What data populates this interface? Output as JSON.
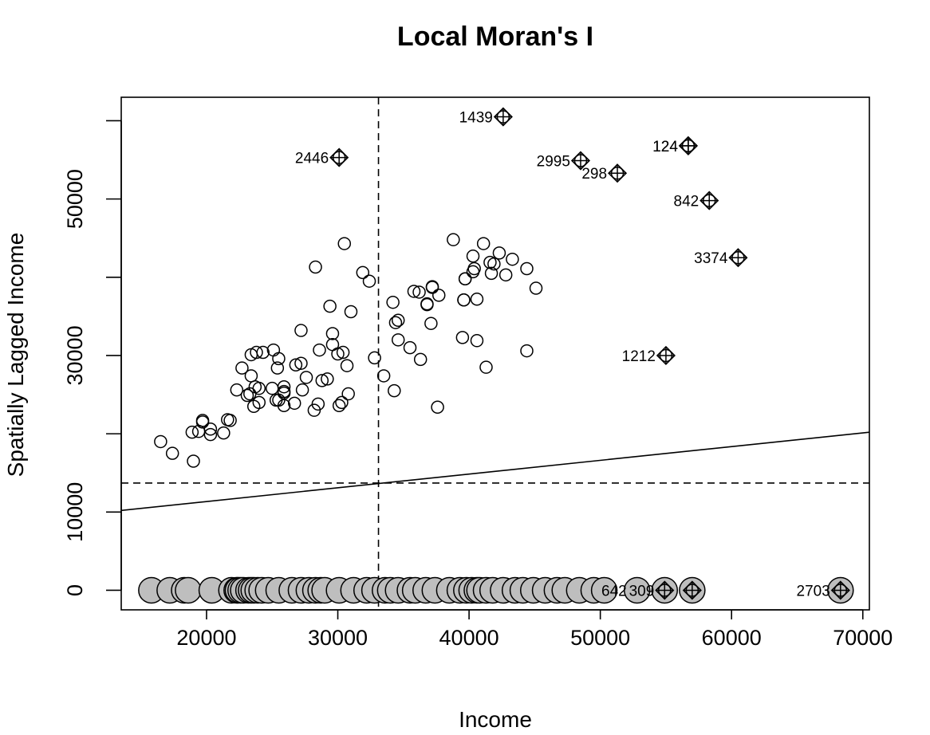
{
  "chart_data": {
    "type": "scatter",
    "title": "Local Moran's I",
    "xlabel": "Income",
    "ylabel": "Spatially Lagged Income",
    "xlim": [
      13500,
      70500
    ],
    "ylim": [
      -2500,
      63000
    ],
    "x_ticks": [
      20000,
      30000,
      40000,
      50000,
      60000,
      70000
    ],
    "y_ticks": [
      0,
      10000,
      30000,
      50000
    ],
    "x_tick_labels": [
      "20000",
      "30000",
      "40000",
      "50000",
      "60000",
      "70000"
    ],
    "y_tick_labels": [
      "0",
      "10000",
      "30000",
      "50000"
    ],
    "y_minor_ticks": [
      20000,
      40000,
      60000
    ],
    "mean_x": 33100,
    "mean_y": 13700,
    "regression_line": {
      "x": [
        13500,
        70500
      ],
      "y": [
        10200,
        20200
      ]
    },
    "grid": false,
    "legend": "none",
    "colors": {
      "marker_stroke": "#000000",
      "zero_fill": "#bebebe",
      "background": "#ffffff"
    },
    "regular_points": [
      [
        16500,
        19000
      ],
      [
        17400,
        17500
      ],
      [
        19000,
        16500
      ],
      [
        18900,
        20200
      ],
      [
        19400,
        20300
      ],
      [
        19700,
        21700
      ],
      [
        19700,
        21500
      ],
      [
        20300,
        19900
      ],
      [
        20300,
        20600
      ],
      [
        21300,
        20100
      ],
      [
        21600,
        21800
      ],
      [
        21800,
        21700
      ],
      [
        22300,
        25600
      ],
      [
        22700,
        28400
      ],
      [
        23100,
        24900
      ],
      [
        23300,
        25100
      ],
      [
        23400,
        27400
      ],
      [
        23400,
        30100
      ],
      [
        23600,
        23500
      ],
      [
        23700,
        26000
      ],
      [
        23800,
        30400
      ],
      [
        24000,
        25800
      ],
      [
        24000,
        24000
      ],
      [
        24300,
        30400
      ],
      [
        25000,
        25800
      ],
      [
        25100,
        30700
      ],
      [
        25300,
        24300
      ],
      [
        25500,
        24300
      ],
      [
        25400,
        28400
      ],
      [
        25500,
        29600
      ],
      [
        25900,
        26000
      ],
      [
        25900,
        25400
      ],
      [
        25900,
        23600
      ],
      [
        25900,
        25200
      ],
      [
        26700,
        23900
      ],
      [
        26800,
        28800
      ],
      [
        27200,
        29000
      ],
      [
        27200,
        33200
      ],
      [
        27300,
        25600
      ],
      [
        27600,
        27200
      ],
      [
        28200,
        23000
      ],
      [
        28300,
        41300
      ],
      [
        28500,
        23800
      ],
      [
        28600,
        30700
      ],
      [
        28800,
        26800
      ],
      [
        29200,
        27000
      ],
      [
        29400,
        36300
      ],
      [
        29600,
        31400
      ],
      [
        29600,
        32800
      ],
      [
        30000,
        30200
      ],
      [
        30100,
        23600
      ],
      [
        30300,
        24000
      ],
      [
        30400,
        30400
      ],
      [
        30500,
        44300
      ],
      [
        30700,
        28700
      ],
      [
        30800,
        25100
      ],
      [
        31000,
        35600
      ],
      [
        31900,
        40600
      ],
      [
        32400,
        39500
      ],
      [
        32800,
        29700
      ],
      [
        33500,
        27400
      ],
      [
        34200,
        36800
      ],
      [
        34300,
        25500
      ],
      [
        34400,
        34200
      ],
      [
        34600,
        34500
      ],
      [
        34600,
        32000
      ],
      [
        35500,
        31000
      ],
      [
        35800,
        38200
      ],
      [
        36200,
        38100
      ],
      [
        36300,
        29500
      ],
      [
        36800,
        36500
      ],
      [
        36800,
        36600
      ],
      [
        37100,
        34100
      ],
      [
        37200,
        38700
      ],
      [
        37200,
        38800
      ],
      [
        37600,
        23400
      ],
      [
        37700,
        37700
      ],
      [
        38800,
        44800
      ],
      [
        39500,
        32300
      ],
      [
        39600,
        37100
      ],
      [
        39600,
        37100
      ],
      [
        39700,
        39800
      ],
      [
        39700,
        39800
      ],
      [
        40300,
        40700
      ],
      [
        40300,
        42700
      ],
      [
        40400,
        41100
      ],
      [
        40600,
        31900
      ],
      [
        40600,
        37200
      ],
      [
        41100,
        44300
      ],
      [
        41300,
        28500
      ],
      [
        41600,
        41900
      ],
      [
        41700,
        40500
      ],
      [
        41900,
        41700
      ],
      [
        42300,
        43100
      ],
      [
        42800,
        40300
      ],
      [
        43300,
        42300
      ],
      [
        44400,
        41100
      ],
      [
        44400,
        30600
      ],
      [
        45100,
        38600
      ]
    ],
    "influential_points": [
      {
        "label": "2446",
        "x": 30100,
        "y": 55300
      },
      {
        "label": "1439",
        "x": 42600,
        "y": 60500
      },
      {
        "label": "2995",
        "x": 48500,
        "y": 54900
      },
      {
        "label": "298",
        "x": 51300,
        "y": 53300
      },
      {
        "label": "124",
        "x": 56700,
        "y": 56800
      },
      {
        "label": "124",
        "x": 56700,
        "y": 56800
      },
      {
        "label": "842",
        "x": 58300,
        "y": 49800
      },
      {
        "label": "3374",
        "x": 60500,
        "y": 42500
      },
      {
        "label": "1212",
        "x": 55000,
        "y": 30000
      }
    ],
    "zero_points": [
      15800,
      17200,
      18300,
      18600,
      20400,
      21900,
      22300,
      22400,
      22600,
      22800,
      23200,
      23400,
      23600,
      23900,
      24200,
      24700,
      25500,
      26500,
      27200,
      27800,
      28300,
      28700,
      29000,
      30100,
      31200,
      32200,
      32800,
      33600,
      34000,
      34600,
      35500,
      35900,
      36700,
      37400,
      38500,
      39300,
      39800,
      40200,
      40600,
      40800,
      41300,
      41800,
      42600,
      43500,
      44100,
      44900,
      45800,
      46700,
      47300,
      48400,
      49500,
      50300
    ],
    "zero_influential_points": [
      {
        "label": "642",
        "x": 52800,
        "y": 0,
        "marker": false
      },
      {
        "label": "309",
        "x": 54900,
        "y": 0,
        "marker": true
      },
      {
        "label": "",
        "x": 57000,
        "y": 0,
        "marker": true
      },
      {
        "label": "2703",
        "x": 68300,
        "y": 0,
        "marker": true
      }
    ]
  }
}
